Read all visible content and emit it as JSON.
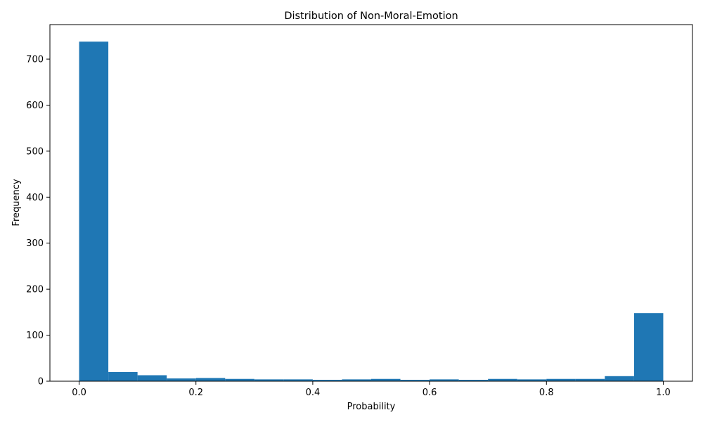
{
  "chart_data": {
    "type": "bar",
    "title": "Distribution of Non-Moral-Emotion",
    "xlabel": "Probability",
    "ylabel": "Frequency",
    "xlim": [
      -0.05,
      1.05
    ],
    "ylim": [
      0,
      775
    ],
    "grid": false,
    "bar_color": "#1f77b4",
    "bin_edges": [
      0.0,
      0.05,
      0.1,
      0.15,
      0.2,
      0.25,
      0.3,
      0.35,
      0.4,
      0.45,
      0.5,
      0.55,
      0.6,
      0.65,
      0.7,
      0.75,
      0.8,
      0.85,
      0.9,
      0.95,
      1.0
    ],
    "values": [
      738,
      20,
      13,
      6,
      7,
      5,
      4,
      4,
      3,
      4,
      5,
      3,
      4,
      3,
      5,
      4,
      5,
      5,
      11,
      148
    ],
    "x_ticks": [
      0.0,
      0.2,
      0.4,
      0.6,
      0.8,
      1.0
    ],
    "x_tick_labels": [
      "0.0",
      "0.2",
      "0.4",
      "0.6",
      "0.8",
      "1.0"
    ],
    "y_ticks": [
      0,
      100,
      200,
      300,
      400,
      500,
      600,
      700
    ],
    "y_tick_labels": [
      "0",
      "100",
      "200",
      "300",
      "400",
      "500",
      "600",
      "700"
    ]
  }
}
